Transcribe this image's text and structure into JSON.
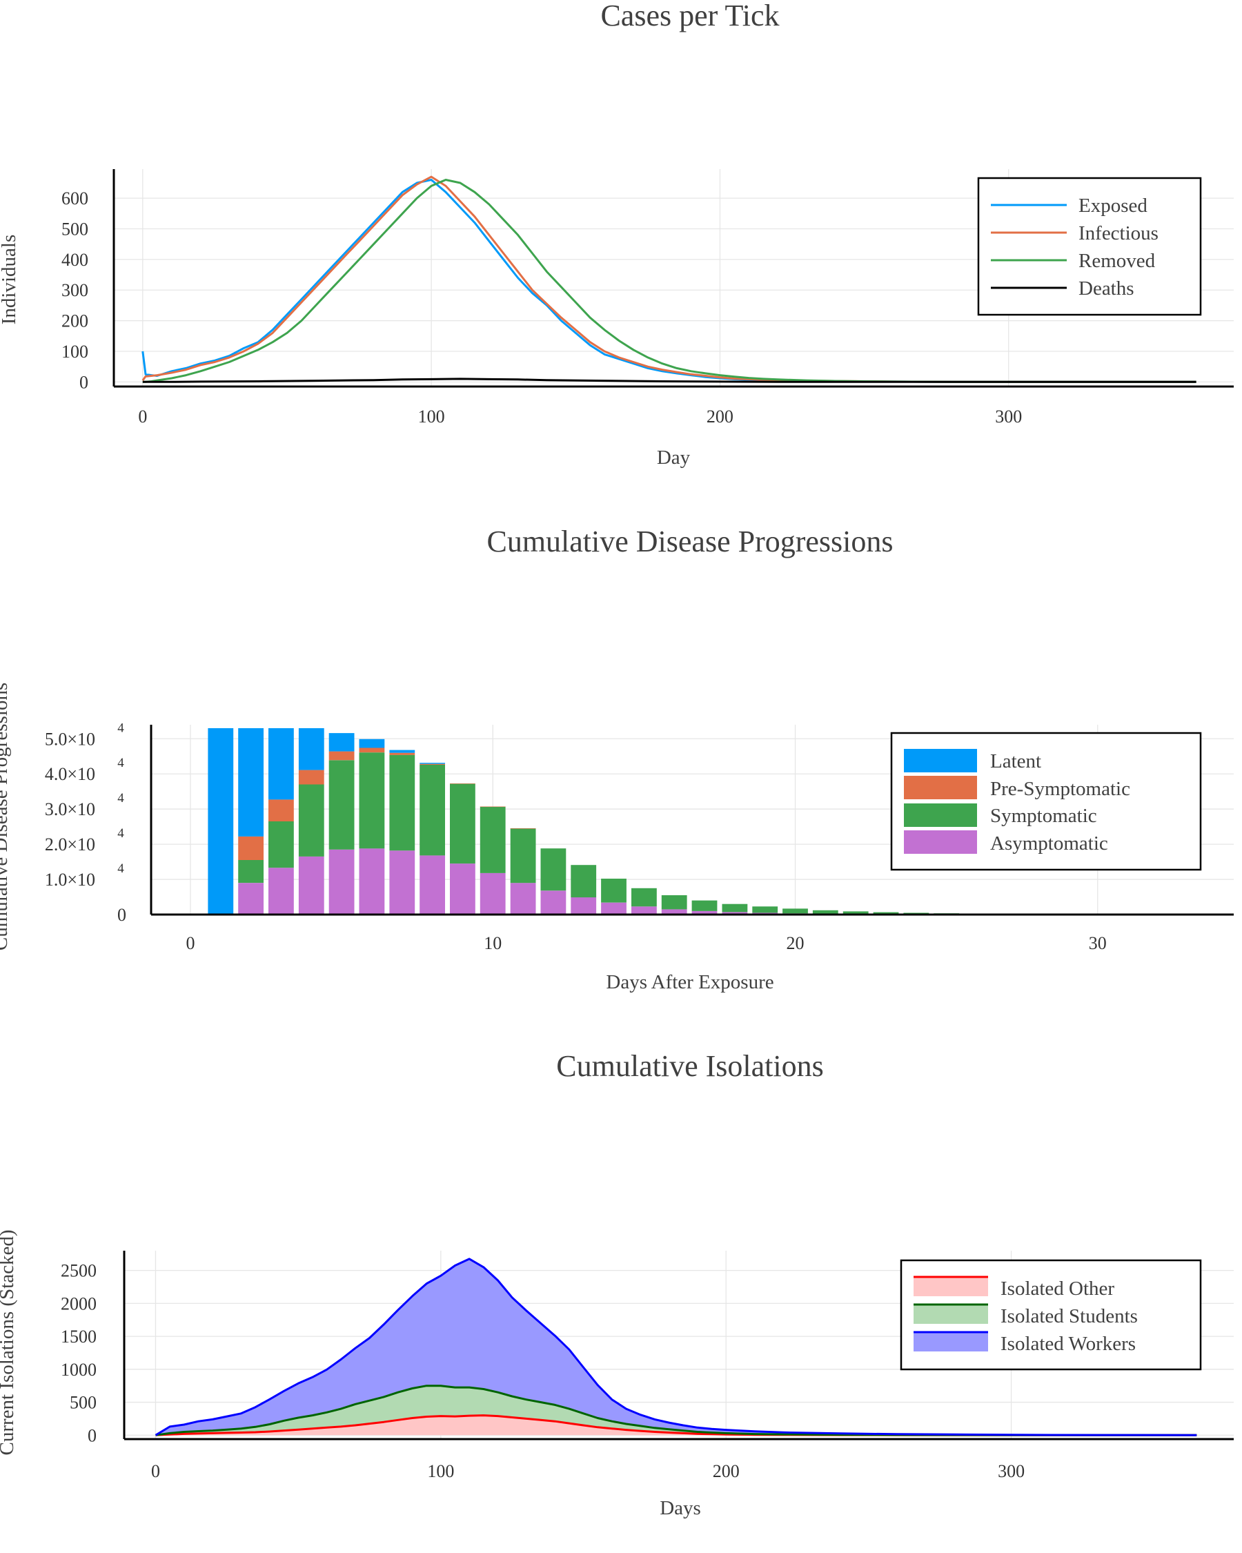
{
  "charts": [
    {
      "title": "Cases per Tick",
      "xlabel": "Day",
      "ylabel": "Individuals",
      "xticks": [
        "0",
        "100",
        "200",
        "300"
      ],
      "yticks": [
        "0",
        "100",
        "200",
        "300",
        "400",
        "500",
        "600"
      ]
    },
    {
      "title": "Cumulative Disease Progressions",
      "xlabel": "Days After Exposure",
      "ylabel": "Cumulative Disease Progressions",
      "xticks": [
        "0",
        "10",
        "20",
        "30"
      ],
      "yticks": [
        "0",
        "1.0×10",
        "2.0×10",
        "3.0×10",
        "4.0×10",
        "5.0×10"
      ],
      "yexp": "4"
    },
    {
      "title": "Cumulative Isolations",
      "xlabel": "Days",
      "ylabel": "Current Isolations (Stacked)",
      "xticks": [
        "0",
        "100",
        "200",
        "300"
      ],
      "yticks": [
        "0",
        "500",
        "1000",
        "1500",
        "2000",
        "2500"
      ]
    }
  ],
  "chart_data": [
    {
      "type": "line",
      "title": "Cases per Tick",
      "xlabel": "Day",
      "ylabel": "Individuals",
      "xlim": [
        -10,
        378
      ],
      "ylim": [
        -15,
        695
      ],
      "grid": true,
      "legend": "top-right",
      "series": [
        {
          "name": "Exposed",
          "color": "#009af9",
          "x": [
            0,
            1,
            3,
            5,
            10,
            15,
            20,
            25,
            30,
            35,
            40,
            45,
            50,
            55,
            60,
            65,
            70,
            75,
            80,
            85,
            90,
            95,
            100,
            105,
            110,
            115,
            120,
            125,
            130,
            135,
            140,
            145,
            150,
            155,
            160,
            165,
            170,
            175,
            180,
            185,
            190,
            195,
            200,
            205,
            210,
            215,
            220,
            230,
            240,
            250,
            260,
            280,
            300,
            330,
            365
          ],
          "y": [
            100,
            25,
            22,
            20,
            35,
            45,
            60,
            70,
            85,
            110,
            130,
            170,
            220,
            270,
            320,
            370,
            420,
            470,
            520,
            570,
            620,
            650,
            660,
            620,
            570,
            520,
            460,
            400,
            340,
            290,
            250,
            200,
            160,
            120,
            90,
            75,
            60,
            45,
            35,
            28,
            22,
            16,
            12,
            9,
            7,
            5,
            4,
            3,
            2,
            1,
            1,
            0,
            0,
            0,
            0
          ]
        },
        {
          "name": "Infectious",
          "color": "#e26f46",
          "x": [
            0,
            1,
            3,
            5,
            10,
            15,
            20,
            25,
            30,
            35,
            40,
            45,
            50,
            55,
            60,
            65,
            70,
            75,
            80,
            85,
            90,
            95,
            100,
            105,
            110,
            115,
            120,
            125,
            130,
            135,
            140,
            145,
            150,
            155,
            160,
            165,
            170,
            175,
            180,
            185,
            190,
            195,
            200,
            205,
            210,
            215,
            220,
            230,
            240,
            250,
            260,
            280,
            300,
            330,
            365
          ],
          "y": [
            5,
            18,
            20,
            22,
            30,
            40,
            55,
            65,
            80,
            100,
            125,
            160,
            210,
            260,
            310,
            360,
            410,
            460,
            510,
            560,
            610,
            645,
            670,
            640,
            590,
            540,
            480,
            420,
            360,
            300,
            255,
            210,
            170,
            130,
            100,
            80,
            65,
            50,
            40,
            32,
            25,
            20,
            15,
            11,
            9,
            7,
            5,
            4,
            3,
            2,
            1,
            0,
            0,
            0,
            0
          ]
        },
        {
          "name": "Removed",
          "color": "#3ea44e",
          "x": [
            0,
            1,
            3,
            5,
            10,
            15,
            20,
            25,
            30,
            35,
            40,
            45,
            50,
            55,
            60,
            65,
            70,
            75,
            80,
            85,
            90,
            95,
            100,
            105,
            110,
            115,
            120,
            125,
            130,
            135,
            140,
            145,
            150,
            155,
            160,
            165,
            170,
            175,
            180,
            185,
            190,
            195,
            200,
            205,
            210,
            215,
            220,
            230,
            240,
            250,
            260,
            280,
            300,
            330,
            365
          ],
          "y": [
            0,
            0,
            2,
            5,
            12,
            22,
            35,
            50,
            65,
            85,
            105,
            130,
            160,
            200,
            250,
            300,
            350,
            400,
            450,
            500,
            550,
            600,
            640,
            660,
            650,
            620,
            580,
            530,
            480,
            420,
            360,
            310,
            260,
            210,
            170,
            135,
            105,
            80,
            60,
            45,
            35,
            28,
            22,
            17,
            13,
            10,
            8,
            5,
            3,
            2,
            1,
            0,
            0,
            0,
            0
          ]
        },
        {
          "name": "Deaths",
          "color": "#000000",
          "x": [
            0,
            10,
            20,
            40,
            60,
            80,
            90,
            100,
            110,
            120,
            130,
            140,
            160,
            180,
            200,
            220,
            240,
            260,
            300,
            365
          ],
          "y": [
            0,
            0,
            1,
            2,
            4,
            6,
            8,
            9,
            10,
            9,
            8,
            6,
            4,
            2,
            1,
            0,
            0,
            0,
            0,
            0
          ]
        }
      ]
    },
    {
      "type": "bar",
      "stacked": true,
      "title": "Cumulative Disease Progressions",
      "xlabel": "Days After Exposure",
      "ylabel": "Cumulative Disease Progressions",
      "xlim": [
        -1.3,
        34.5
      ],
      "ylim": [
        0,
        53000
      ],
      "grid": true,
      "legend": "top-right",
      "x": [
        1,
        2,
        3,
        4,
        5,
        6,
        7,
        8,
        9,
        10,
        11,
        12,
        13,
        14,
        15,
        16,
        17,
        18,
        19,
        20,
        21,
        22,
        23,
        24,
        25,
        26,
        27,
        28,
        29,
        30,
        31,
        32
      ],
      "series": [
        {
          "name": "Asymptomatic",
          "color": "#c271d2",
          "values": [
            0,
            9000,
            13300,
            16500,
            18500,
            18800,
            18200,
            16800,
            14500,
            11800,
            9000,
            6800,
            4900,
            3400,
            2300,
            1500,
            1000,
            700,
            500,
            330,
            220,
            150,
            100,
            70,
            50,
            35,
            25,
            18,
            12,
            8,
            5,
            3
          ]
        },
        {
          "name": "Symptomatic",
          "color": "#3ea44e",
          "values": [
            0,
            6500,
            13200,
            20500,
            25400,
            27300,
            27200,
            25800,
            22700,
            18900,
            15500,
            12000,
            9200,
            6800,
            5200,
            4000,
            3000,
            2300,
            1800,
            1350,
            1000,
            750,
            560,
            420,
            310,
            230,
            170,
            130,
            95,
            70,
            50,
            35
          ]
        },
        {
          "name": "Pre-Symptomatic",
          "color": "#e26f46",
          "values": [
            0,
            6700,
            6200,
            4100,
            2500,
            1300,
            600,
            250,
            80,
            30,
            10,
            0,
            0,
            0,
            0,
            0,
            0,
            0,
            0,
            0,
            0,
            0,
            0,
            0,
            0,
            0,
            0,
            0,
            0,
            0,
            0,
            0
          ]
        },
        {
          "name": "Latent",
          "color": "#009af9",
          "values": [
            53000,
            30800,
            20300,
            11900,
            5200,
            2500,
            800,
            300,
            0,
            0,
            0,
            0,
            0,
            0,
            0,
            0,
            0,
            0,
            0,
            0,
            0,
            0,
            0,
            0,
            0,
            0,
            0,
            0,
            0,
            0,
            0,
            0
          ]
        }
      ]
    },
    {
      "type": "area",
      "stacked": true,
      "title": "Cumulative Isolations",
      "xlabel": "Days",
      "ylabel": "Current Isolations (Stacked)",
      "xlim": [
        -11,
        378
      ],
      "ylim": [
        -60,
        2800
      ],
      "grid": true,
      "legend": "top-right",
      "x": [
        0,
        5,
        10,
        15,
        20,
        25,
        30,
        35,
        40,
        45,
        50,
        55,
        60,
        65,
        70,
        75,
        80,
        85,
        90,
        95,
        100,
        105,
        110,
        115,
        120,
        125,
        130,
        135,
        140,
        145,
        150,
        155,
        160,
        165,
        170,
        175,
        180,
        185,
        190,
        195,
        200,
        210,
        220,
        240,
        260,
        280,
        300,
        330,
        365
      ],
      "series": [
        {
          "name": "Isolated Other",
          "color": "#ff0000",
          "fill": "#ffc6c6",
          "values": [
            0,
            10,
            20,
            25,
            30,
            35,
            40,
            45,
            55,
            70,
            85,
            100,
            115,
            130,
            150,
            175,
            200,
            230,
            260,
            280,
            290,
            285,
            295,
            300,
            290,
            270,
            250,
            230,
            210,
            180,
            150,
            120,
            100,
            80,
            65,
            50,
            40,
            30,
            20,
            15,
            10,
            6,
            4,
            2,
            1,
            1,
            0,
            0,
            0
          ]
        },
        {
          "name": "Isolated Students",
          "color": "#006400",
          "fill": "#b2dab2",
          "values": [
            0,
            20,
            30,
            35,
            40,
            50,
            60,
            80,
            110,
            150,
            180,
            200,
            230,
            270,
            320,
            350,
            380,
            420,
            450,
            470,
            460,
            440,
            430,
            400,
            360,
            320,
            290,
            270,
            250,
            220,
            180,
            140,
            110,
            90,
            75,
            60,
            50,
            40,
            30,
            25,
            20,
            12,
            8,
            4,
            2,
            1,
            0,
            0,
            0
          ]
        },
        {
          "name": "Isolated Workers",
          "color": "#0000ff",
          "fill": "#9999ff",
          "values": [
            0,
            100,
            110,
            150,
            170,
            200,
            230,
            300,
            380,
            450,
            520,
            580,
            650,
            750,
            850,
            950,
            1100,
            1250,
            1400,
            1550,
            1670,
            1850,
            1950,
            1850,
            1700,
            1500,
            1350,
            1200,
            1050,
            900,
            700,
            500,
            330,
            230,
            170,
            130,
            100,
            80,
            65,
            55,
            50,
            40,
            30,
            20,
            12,
            8,
            5,
            2,
            1
          ]
        }
      ]
    }
  ]
}
